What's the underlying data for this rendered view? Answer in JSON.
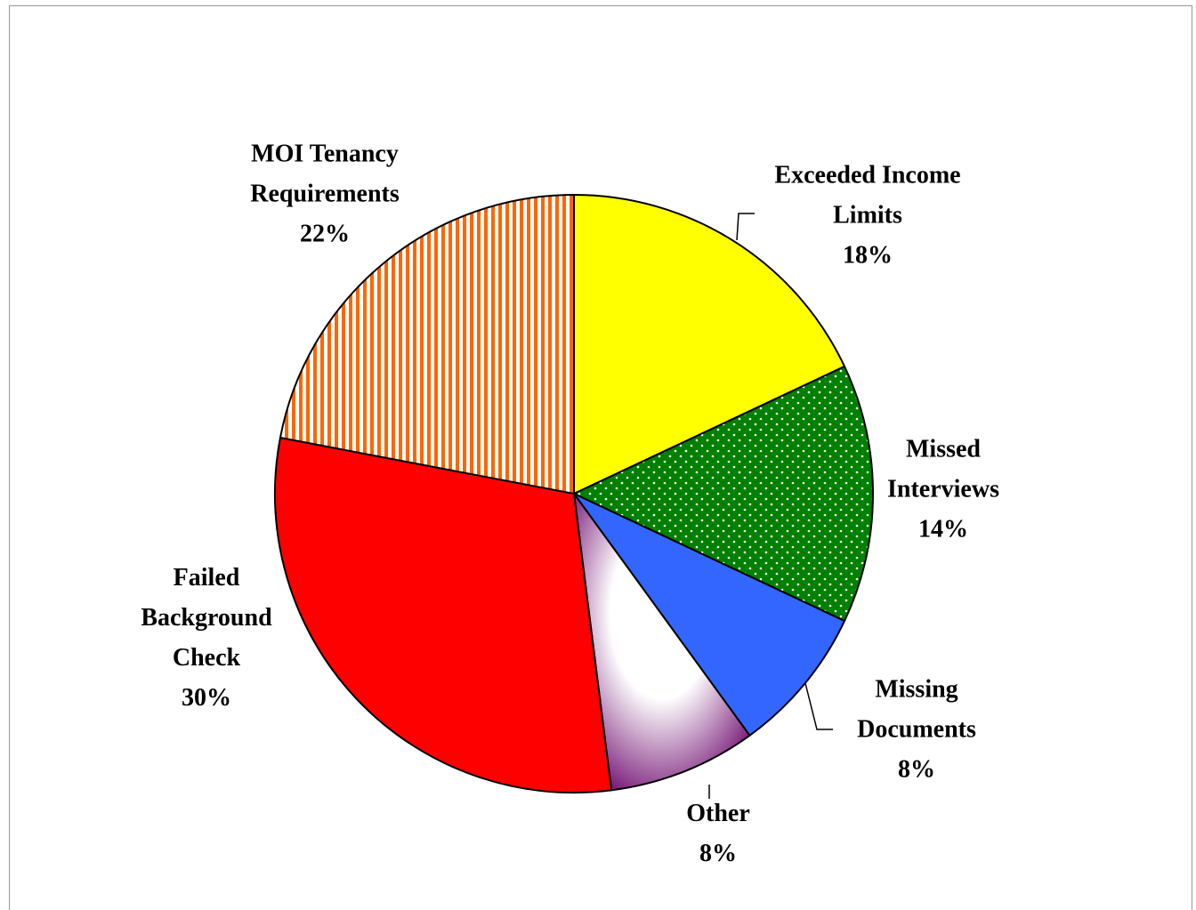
{
  "chart_data": {
    "type": "pie",
    "categories": [
      "Exceeded Income Limits",
      "Missed Interviews",
      "Missing Documents",
      "Other",
      "Failed Background Check",
      "MOI Tenancy Requirements"
    ],
    "values": [
      18,
      14,
      8,
      8,
      30,
      22
    ],
    "value_labels": [
      "18%",
      "14%",
      "8%",
      "8%",
      "30%",
      "22%"
    ],
    "colors": [
      "#ffff00",
      "#008000",
      "#3366ff",
      "#7b1f7b",
      "#ff0000",
      "#ff6600"
    ],
    "patterns": [
      "solid",
      "dots",
      "solid",
      "gradient",
      "solid",
      "stripes"
    ]
  }
}
